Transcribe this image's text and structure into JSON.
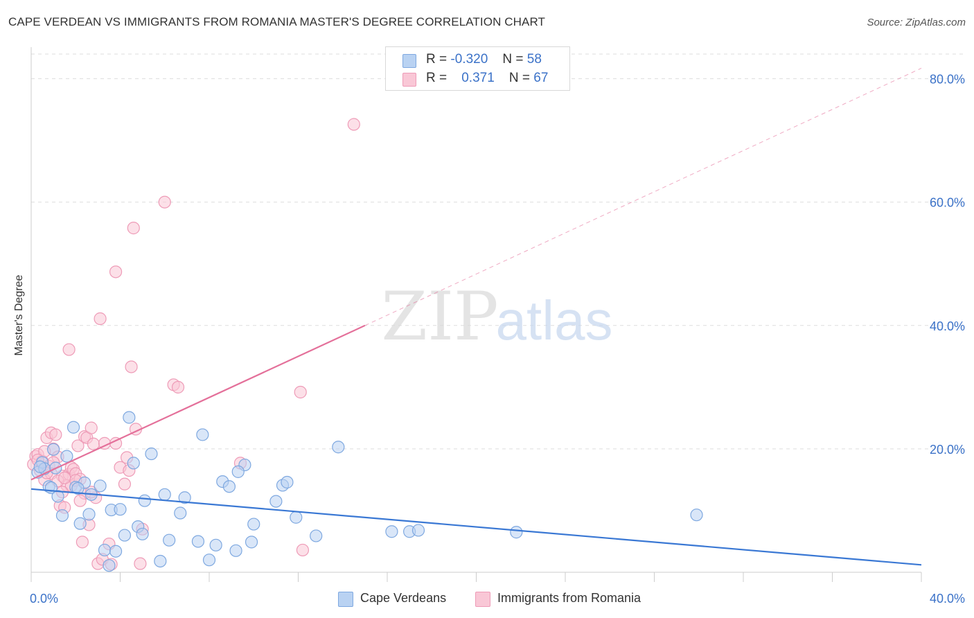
{
  "title": "CAPE VERDEAN VS IMMIGRANTS FROM ROMANIA MASTER'S DEGREE CORRELATION CHART",
  "source": "Source: ZipAtlas.com",
  "watermark": {
    "zip": "ZIP",
    "atlas": "atlas"
  },
  "colors": {
    "blue": "#3a78d4",
    "blue_fill": "#b9d2f2",
    "blue_stroke": "#7ea8e0",
    "pink": "#e4709a",
    "pink_fill": "#f9c7d6",
    "pink_stroke": "#ee9bb7",
    "axis_text": "#3b72c8",
    "grid": "#dddddd"
  },
  "legend": {
    "rows": [
      {
        "r_label": "R =",
        "r_value": "-0.320",
        "n_label": "N =",
        "n_value": "58"
      },
      {
        "r_label": "R =",
        "r_value": "0.371",
        "n_label": "N =",
        "n_value": "67"
      }
    ]
  },
  "bottom_legend": {
    "series1": "Cape Verdeans",
    "series2": "Immigrants from Romania"
  },
  "chart_data": {
    "type": "scatter",
    "xlabel": "",
    "ylabel": "Master's Degree",
    "xlim": [
      0,
      40
    ],
    "ylim": [
      0,
      84
    ],
    "x_tick_labels": [
      "0.0%",
      "40.0%"
    ],
    "y_ticks": [
      20,
      40,
      60,
      80
    ],
    "y_tick_labels": [
      "20.0%",
      "40.0%",
      "60.0%",
      "80.0%"
    ],
    "series": [
      {
        "name": "Cape Verdeans",
        "r": -0.32,
        "n": 58,
        "trend": {
          "x0": 0,
          "y0": 13.5,
          "x1": 40,
          "y1": 1.2
        },
        "points": [
          [
            0.3,
            16.2
          ],
          [
            0.5,
            17.8
          ],
          [
            0.6,
            16.8
          ],
          [
            0.8,
            13.9
          ],
          [
            0.9,
            13.7
          ],
          [
            1.0,
            19.9
          ],
          [
            1.2,
            12.3
          ],
          [
            1.4,
            9.2
          ],
          [
            1.6,
            18.8
          ],
          [
            1.9,
            23.5
          ],
          [
            2.0,
            13.8
          ],
          [
            2.2,
            7.9
          ],
          [
            2.4,
            14.5
          ],
          [
            2.6,
            9.4
          ],
          [
            2.7,
            12.6
          ],
          [
            3.1,
            14.0
          ],
          [
            3.3,
            3.6
          ],
          [
            3.6,
            10.1
          ],
          [
            3.8,
            3.4
          ],
          [
            4.0,
            10.2
          ],
          [
            4.2,
            6.0
          ],
          [
            4.4,
            25.1
          ],
          [
            4.6,
            17.7
          ],
          [
            4.8,
            7.4
          ],
          [
            5.0,
            6.2
          ],
          [
            5.1,
            11.6
          ],
          [
            5.4,
            19.2
          ],
          [
            5.8,
            1.8
          ],
          [
            6.0,
            12.6
          ],
          [
            6.2,
            5.2
          ],
          [
            6.7,
            9.6
          ],
          [
            7.5,
            5.0
          ],
          [
            7.7,
            22.3
          ],
          [
            8.0,
            2.0
          ],
          [
            8.3,
            4.4
          ],
          [
            8.6,
            14.7
          ],
          [
            8.9,
            13.9
          ],
          [
            9.2,
            3.5
          ],
          [
            9.6,
            17.4
          ],
          [
            9.9,
            4.9
          ],
          [
            10.0,
            7.8
          ],
          [
            11.0,
            11.5
          ],
          [
            11.3,
            14.1
          ],
          [
            11.5,
            14.6
          ],
          [
            11.9,
            8.9
          ],
          [
            12.8,
            5.9
          ],
          [
            13.8,
            20.3
          ],
          [
            16.2,
            6.6
          ],
          [
            17.0,
            6.6
          ],
          [
            17.4,
            6.8
          ],
          [
            21.8,
            6.5
          ],
          [
            29.9,
            9.3
          ],
          [
            0.4,
            17.1
          ],
          [
            1.1,
            16.9
          ],
          [
            2.1,
            13.6
          ],
          [
            3.5,
            1.1
          ],
          [
            6.9,
            12.1
          ],
          [
            9.3,
            16.3
          ]
        ]
      },
      {
        "name": "Immigrants from Romania",
        "r": 0.371,
        "n": 67,
        "trend": {
          "x0": 0,
          "y0": 15.0,
          "x1": 15.0,
          "y1": 40.0
        },
        "trend_dashed": {
          "x0": 15.0,
          "y0": 40.0,
          "x1": 40,
          "y1": 81.7
        },
        "points": [
          [
            0.1,
            17.5
          ],
          [
            0.2,
            18.8
          ],
          [
            0.3,
            19.1
          ],
          [
            0.4,
            16.5
          ],
          [
            0.5,
            18.0
          ],
          [
            0.6,
            15.0
          ],
          [
            0.7,
            21.8
          ],
          [
            0.8,
            17.2
          ],
          [
            0.9,
            22.6
          ],
          [
            1.0,
            20.0
          ],
          [
            1.1,
            22.3
          ],
          [
            1.2,
            18.7
          ],
          [
            1.3,
            10.8
          ],
          [
            1.4,
            15.6
          ],
          [
            1.5,
            10.5
          ],
          [
            1.6,
            14.1
          ],
          [
            1.7,
            15.9
          ],
          [
            1.8,
            17.0
          ],
          [
            1.9,
            16.7
          ],
          [
            2.0,
            16.0
          ],
          [
            2.1,
            20.5
          ],
          [
            2.2,
            15.1
          ],
          [
            2.3,
            4.9
          ],
          [
            2.4,
            22.0
          ],
          [
            2.5,
            21.8
          ],
          [
            2.6,
            7.7
          ],
          [
            2.7,
            23.4
          ],
          [
            2.8,
            20.8
          ],
          [
            2.9,
            12.1
          ],
          [
            3.0,
            1.4
          ],
          [
            3.1,
            41.1
          ],
          [
            3.2,
            2.1
          ],
          [
            3.5,
            4.6
          ],
          [
            3.8,
            48.7
          ],
          [
            4.0,
            17.0
          ],
          [
            4.2,
            14.3
          ],
          [
            4.3,
            18.6
          ],
          [
            4.5,
            33.3
          ],
          [
            4.6,
            55.8
          ],
          [
            4.7,
            23.2
          ],
          [
            5.0,
            7.0
          ],
          [
            6.0,
            60.0
          ],
          [
            6.4,
            30.4
          ],
          [
            6.6,
            30.0
          ],
          [
            9.4,
            17.7
          ],
          [
            12.1,
            29.2
          ],
          [
            12.2,
            3.6
          ],
          [
            14.5,
            72.6
          ],
          [
            1.7,
            36.1
          ],
          [
            0.9,
            16.0
          ],
          [
            1.2,
            14.8
          ],
          [
            1.8,
            14.0
          ],
          [
            2.4,
            12.8
          ],
          [
            3.6,
            1.3
          ],
          [
            4.9,
            1.4
          ],
          [
            0.6,
            19.6
          ],
          [
            1.0,
            17.8
          ],
          [
            1.4,
            13.0
          ],
          [
            2.0,
            14.9
          ],
          [
            2.7,
            13.0
          ],
          [
            3.3,
            20.9
          ],
          [
            0.3,
            18.2
          ],
          [
            0.7,
            16.1
          ],
          [
            1.5,
            15.3
          ],
          [
            2.2,
            11.6
          ],
          [
            3.8,
            20.9
          ],
          [
            4.4,
            16.5
          ]
        ]
      }
    ]
  }
}
